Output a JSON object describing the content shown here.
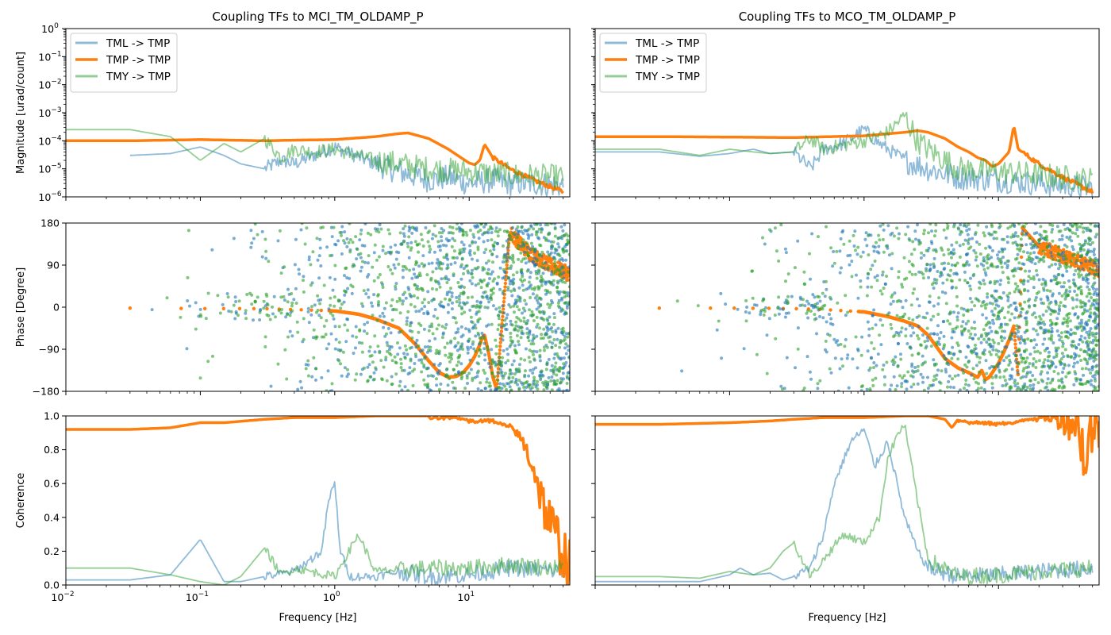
{
  "figure": {
    "colors": {
      "TML": "#1f77b4",
      "TMP": "#ff7f0e",
      "TMY": "#2ca02c",
      "axes": "#000000",
      "background": "#ffffff"
    }
  },
  "chart_data": [
    {
      "type": "line",
      "panel": "magnitude-left",
      "title": "Coupling TFs to MCI_TM_OLDAMP_P",
      "xlabel": "",
      "ylabel": "Magnitude [urad/count]",
      "xscale": "log",
      "yscale": "log",
      "xlim": [
        0.01,
        56
      ],
      "ylim": [
        1e-06,
        1
      ],
      "yticks": [
        "10^{-6}",
        "10^{-5}",
        "10^{-4}",
        "10^{-3}",
        "10^{-2}",
        "10^{-1}",
        "10^{0}"
      ],
      "legend": {
        "placement": "top-left",
        "entries": [
          "TML -> TMP",
          "TMP -> TMP",
          "TMY -> TMP"
        ]
      },
      "series": [
        {
          "name": "TML -> TMP",
          "x": [
            0.03,
            0.06,
            0.1,
            0.15,
            0.2,
            0.3,
            0.4,
            0.5,
            0.7,
            1,
            2,
            3,
            5,
            7,
            10,
            15,
            20,
            30,
            50
          ],
          "y": [
            3e-05,
            3.5e-05,
            6e-05,
            3e-05,
            1.5e-05,
            1e-05,
            2e-05,
            1.5e-05,
            3e-05,
            6e-05,
            1.5e-05,
            8e-06,
            4e-06,
            5e-06,
            3e-06,
            4e-06,
            3e-06,
            3e-06,
            2.5e-06
          ]
        },
        {
          "name": "TMP -> TMP",
          "x": [
            0.01,
            0.03,
            0.1,
            0.3,
            0.5,
            1,
            2,
            3,
            3.5,
            5,
            7,
            10,
            11,
            12,
            13,
            15,
            20,
            30,
            50
          ],
          "y": [
            0.0001,
            0.0001,
            0.00011,
            0.0001,
            0.000105,
            0.00011,
            0.00014,
            0.00018,
            0.00019,
            0.00012,
            5e-05,
            1.6e-05,
            1.4e-05,
            2e-05,
            7.5e-05,
            2.5e-05,
            1e-05,
            4e-06,
            1.5e-06
          ]
        },
        {
          "name": "TMY -> TMP",
          "x": [
            0.01,
            0.03,
            0.06,
            0.1,
            0.15,
            0.2,
            0.3,
            0.4,
            0.5,
            0.7,
            1,
            2,
            3,
            5,
            10,
            20,
            50
          ],
          "y": [
            0.00025,
            0.00025,
            0.00014,
            2e-05,
            8e-05,
            4e-05,
            0.00012,
            2.5e-05,
            5e-05,
            4e-05,
            5e-05,
            2e-05,
            1.5e-05,
            1e-05,
            8e-06,
            6e-06,
            5e-06
          ]
        }
      ]
    },
    {
      "type": "line",
      "panel": "magnitude-right",
      "title": "Coupling TFs to MCO_TM_OLDAMP_P",
      "xlabel": "",
      "ylabel": "",
      "xscale": "log",
      "yscale": "log",
      "xlim": [
        0.01,
        56
      ],
      "ylim": [
        1e-06,
        1
      ],
      "legend": {
        "placement": "top-left",
        "entries": [
          "TML -> TMP",
          "TMP -> TMP",
          "TMY -> TMP"
        ]
      },
      "series": [
        {
          "name": "TML -> TMP",
          "x": [
            0.01,
            0.03,
            0.06,
            0.1,
            0.15,
            0.2,
            0.3,
            0.4,
            0.5,
            0.7,
            1,
            1.3,
            2,
            3,
            5,
            10,
            20,
            50
          ],
          "y": [
            4e-05,
            4e-05,
            2.8e-05,
            3.5e-05,
            5e-05,
            3.5e-05,
            4e-05,
            1e-05,
            5e-05,
            8e-05,
            0.00025,
            8e-05,
            2e-05,
            1e-05,
            5e-06,
            4e-06,
            3e-06,
            2e-06
          ]
        },
        {
          "name": "TMP -> TMP",
          "x": [
            0.01,
            0.03,
            0.1,
            0.3,
            1,
            2,
            2.5,
            3,
            4,
            5,
            6,
            7,
            8,
            9,
            10,
            12,
            13,
            14,
            20,
            30,
            50
          ],
          "y": [
            0.00014,
            0.00014,
            0.000135,
            0.00013,
            0.00015,
            0.0002,
            0.00023,
            0.0002,
            0.00012,
            6e-05,
            4e-05,
            2.5e-05,
            2e-05,
            1.2e-05,
            1.5e-05,
            4e-05,
            0.00035,
            5e-05,
            1.5e-05,
            5e-06,
            1.5e-06
          ]
        },
        {
          "name": "TMY -> TMP",
          "x": [
            0.01,
            0.03,
            0.06,
            0.1,
            0.15,
            0.2,
            0.3,
            0.4,
            0.5,
            0.7,
            1,
            1.5,
            2,
            2.5,
            3,
            4,
            5,
            10,
            20,
            50
          ],
          "y": [
            5e-05,
            5e-05,
            3e-05,
            5e-05,
            4e-05,
            3.5e-05,
            4e-05,
            0.00012,
            5e-05,
            7e-05,
            0.0001,
            0.0002,
            0.0008,
            0.0001,
            5e-05,
            2e-05,
            1e-05,
            8e-06,
            6e-06,
            4e-06
          ]
        }
      ]
    },
    {
      "type": "scatter",
      "panel": "phase-left",
      "ylabel": "Phase [Degree]",
      "xscale": "log",
      "xlim": [
        0.01,
        56
      ],
      "ylim": [
        -180,
        180
      ],
      "yticks": [
        "−180",
        "−90",
        "0",
        "90",
        "180"
      ],
      "series": [
        {
          "name": "TMP -> TMP",
          "curve": {
            "x": [
              0.03,
              0.1,
              0.3,
              1,
              1.5,
              2,
              3,
              4,
              5,
              6,
              7,
              8,
              9,
              10,
              11,
              12,
              12.5,
              13,
              14,
              15,
              16,
              20,
              25,
              30,
              40,
              56
            ],
            "y": [
              -2,
              -3,
              -3,
              -8,
              -15,
              -25,
              -45,
              -80,
              -115,
              -140,
              -150,
              -148,
              -140,
              -125,
              -105,
              -80,
              -65,
              -60,
              -100,
              -150,
              -175,
              160,
              130,
              110,
              90,
              70
            ]
          }
        },
        {
          "name": "TML -> TMP",
          "scatter": "random-phase",
          "x_from": 0.03
        },
        {
          "name": "TMY -> TMP",
          "scatter": "random-phase",
          "x_from": 0.03
        }
      ]
    },
    {
      "type": "scatter",
      "panel": "phase-right",
      "ylabel": "",
      "xscale": "log",
      "xlim": [
        0.01,
        56
      ],
      "ylim": [
        -180,
        180
      ],
      "series": [
        {
          "name": "TMP -> TMP",
          "curve": {
            "x": [
              0.03,
              0.1,
              0.3,
              0.5,
              1,
              1.5,
              2,
              2.5,
              3,
              4,
              5,
              6,
              7,
              7.5,
              8,
              8.5,
              9,
              10,
              11,
              12,
              13,
              14,
              15,
              20,
              30,
              56
            ],
            "y": [
              -2,
              -2,
              -3,
              -5,
              -10,
              -20,
              -30,
              -40,
              -60,
              -110,
              -130,
              -140,
              -150,
              -135,
              -155,
              -150,
              -140,
              -120,
              -95,
              -70,
              -40,
              -150,
              170,
              130,
              110,
              80
            ]
          }
        },
        {
          "name": "TML -> TMP",
          "scatter": "random-phase",
          "x_from": 0.03
        },
        {
          "name": "TMY -> TMP",
          "scatter": "random-phase",
          "x_from": 0.03
        }
      ]
    },
    {
      "type": "line",
      "panel": "coherence-left",
      "xlabel": "Frequency [Hz]",
      "ylabel": "Coherence",
      "xscale": "log",
      "xlim": [
        0.01,
        56
      ],
      "ylim": [
        0,
        1
      ],
      "xticks": [
        "10^{-2}",
        "10^{-1}",
        "10^{0}",
        "10^{1}"
      ],
      "yticks": [
        "0.0",
        "0.2",
        "0.4",
        "0.6",
        "0.8",
        "1.0"
      ],
      "series": [
        {
          "name": "TML -> TMP",
          "x": [
            0.01,
            0.03,
            0.06,
            0.1,
            0.15,
            0.2,
            0.3,
            0.5,
            0.8,
            0.9,
            1.0,
            1.1,
            1.3,
            2,
            3,
            5,
            10,
            20,
            50
          ],
          "y": [
            0.03,
            0.03,
            0.06,
            0.27,
            0.02,
            0.02,
            0.05,
            0.08,
            0.2,
            0.5,
            0.6,
            0.2,
            0.05,
            0.05,
            0.08,
            0.05,
            0.06,
            0.1,
            0.08
          ]
        },
        {
          "name": "TMP -> TMP",
          "x": [
            0.01,
            0.03,
            0.06,
            0.1,
            0.15,
            0.3,
            0.5,
            1,
            2,
            5,
            8,
            10,
            15,
            20,
            25,
            30,
            35,
            40,
            50,
            56
          ],
          "y": [
            0.92,
            0.92,
            0.93,
            0.96,
            0.96,
            0.98,
            0.99,
            0.99,
            1.0,
            1.0,
            1.0,
            0.98,
            0.98,
            0.95,
            0.85,
            0.7,
            0.5,
            0.35,
            0.2,
            0.1
          ]
        },
        {
          "name": "TMY -> TMP",
          "x": [
            0.01,
            0.03,
            0.06,
            0.1,
            0.15,
            0.2,
            0.3,
            0.4,
            0.5,
            1,
            1.5,
            2,
            5,
            10,
            20,
            50
          ],
          "y": [
            0.1,
            0.1,
            0.06,
            0.02,
            0.0,
            0.05,
            0.22,
            0.06,
            0.1,
            0.05,
            0.3,
            0.08,
            0.1,
            0.1,
            0.12,
            0.1
          ]
        }
      ]
    },
    {
      "type": "line",
      "panel": "coherence-right",
      "xlabel": "Frequency [Hz]",
      "ylabel": "",
      "xscale": "log",
      "xlim": [
        0.01,
        56
      ],
      "ylim": [
        0,
        1
      ],
      "series": [
        {
          "name": "TML -> TMP",
          "x": [
            0.01,
            0.03,
            0.06,
            0.1,
            0.12,
            0.15,
            0.2,
            0.25,
            0.3,
            0.4,
            0.5,
            0.6,
            0.8,
            1.0,
            1.2,
            1.5,
            2,
            2.5,
            3,
            5,
            10,
            20,
            50
          ],
          "y": [
            0.02,
            0.02,
            0.02,
            0.06,
            0.1,
            0.06,
            0.07,
            0.03,
            0.05,
            0.1,
            0.3,
            0.6,
            0.85,
            0.92,
            0.7,
            0.85,
            0.4,
            0.2,
            0.1,
            0.05,
            0.06,
            0.08,
            0.1
          ]
        },
        {
          "name": "TMP -> TMP",
          "x": [
            0.01,
            0.03,
            0.1,
            0.2,
            0.3,
            0.5,
            1,
            2,
            3,
            4,
            4.5,
            5,
            6,
            8,
            10,
            15,
            20,
            30,
            40,
            45,
            48,
            52,
            56
          ],
          "y": [
            0.95,
            0.95,
            0.96,
            0.97,
            0.98,
            0.99,
            0.99,
            1.0,
            1.0,
            0.98,
            0.93,
            0.98,
            0.97,
            0.97,
            0.96,
            0.98,
            0.99,
            0.99,
            0.96,
            0.65,
            0.9,
            0.97,
            0.95
          ]
        },
        {
          "name": "TMY -> TMP",
          "x": [
            0.01,
            0.03,
            0.06,
            0.1,
            0.15,
            0.2,
            0.25,
            0.3,
            0.4,
            0.5,
            0.7,
            1.0,
            1.3,
            1.5,
            1.8,
            2,
            2.5,
            3,
            5,
            10,
            20,
            50
          ],
          "y": [
            0.05,
            0.05,
            0.04,
            0.08,
            0.06,
            0.1,
            0.2,
            0.25,
            0.05,
            0.15,
            0.3,
            0.25,
            0.4,
            0.75,
            0.9,
            0.95,
            0.5,
            0.15,
            0.05,
            0.06,
            0.08,
            0.1
          ]
        }
      ]
    }
  ]
}
